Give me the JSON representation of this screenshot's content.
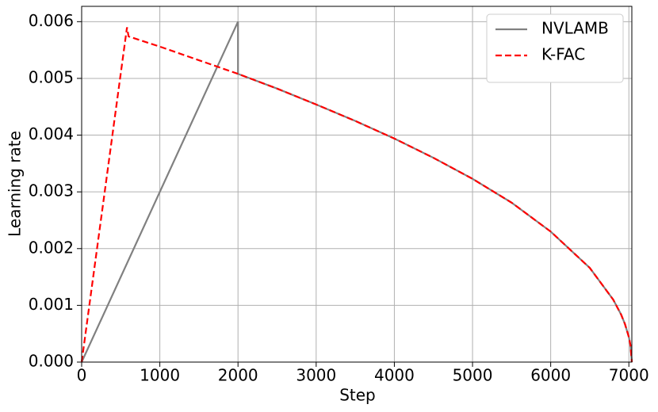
{
  "chart_data": {
    "type": "line",
    "x_label": "Step",
    "y_label": "Learning rate",
    "xlim": [
      0,
      7038
    ],
    "ylim": [
      0,
      0.00627
    ],
    "xticks": [
      0,
      1000,
      2000,
      3000,
      4000,
      5000,
      6000,
      7000
    ],
    "yticks": [
      {
        "value": 0,
        "label": "0.000"
      },
      {
        "value": 0.001,
        "label": "0.001"
      },
      {
        "value": 0.002,
        "label": "0.002"
      },
      {
        "value": 0.003,
        "label": "0.003"
      },
      {
        "value": 0.004,
        "label": "0.004"
      },
      {
        "value": 0.005,
        "label": "0.005"
      },
      {
        "value": 0.006,
        "label": "0.006"
      }
    ],
    "grid": true,
    "legend": "upper right",
    "series": [
      {
        "name": "NVLAMB",
        "color": "#808080",
        "linestyle": "solid",
        "x": [
          0,
          2000,
          2000,
          2500,
          3000,
          3500,
          4000,
          4500,
          5000,
          5500,
          6000,
          6500,
          6800,
          6900,
          6950,
          7000,
          7020,
          7038
        ],
        "values": [
          0,
          0.006,
          0.00508,
          0.00482,
          0.00454,
          0.00425,
          0.00394,
          0.0036,
          0.00323,
          0.00281,
          0.0023,
          0.00166,
          0.0011,
          0.00084,
          0.00067,
          0.00044,
          0.0003,
          0
        ]
      },
      {
        "name": "K-FAC",
        "color": "#ff0000",
        "linestyle": "dashed",
        "x": [
          0,
          580,
          600,
          1000,
          1500,
          2000,
          2500,
          3000,
          3500,
          4000,
          4500,
          5000,
          5500,
          6000,
          6500,
          6800,
          6900,
          6950,
          7000,
          7020,
          7038
        ],
        "values": [
          0,
          0.0059,
          0.00574,
          0.00556,
          0.00532,
          0.00508,
          0.00482,
          0.00454,
          0.00425,
          0.00394,
          0.0036,
          0.00323,
          0.00281,
          0.0023,
          0.00166,
          0.0011,
          0.00084,
          0.00067,
          0.00044,
          0.0003,
          0
        ]
      }
    ]
  }
}
